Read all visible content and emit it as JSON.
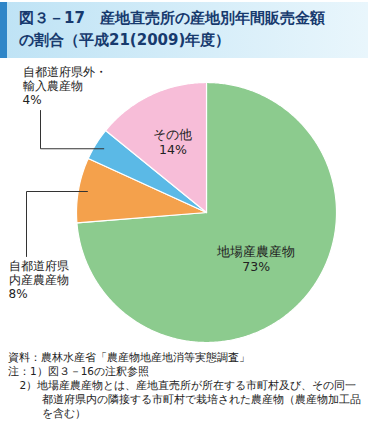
{
  "chart_data": {
    "type": "pie",
    "title": "図３－17　産地直売所の産地別年間販売金額\nの割合（平成21(2009)年度）",
    "categories": [
      "地場産農産物",
      "自都道府県\n内産農産物",
      "自都道府県外・\n輸入農産物",
      "その他"
    ],
    "values": [
      73,
      8,
      4,
      14
    ],
    "value_labels": [
      "73%",
      "8%",
      "4%",
      "14%"
    ],
    "colors": [
      "#8ccb8e",
      "#f4a14c",
      "#5bb9e6",
      "#f7bdd8"
    ],
    "data_labels": true,
    "source": "資料：農林水産省「農産物地産地消等実態調査」",
    "notes": [
      "注：1）図３－16の注釈参照",
      "2）地場産農産物とは、産地直売所が所在する市町村及び、その同一都道府県内の隣接する市町村で栽培された農産物（農産物加工品を含む）"
    ]
  }
}
